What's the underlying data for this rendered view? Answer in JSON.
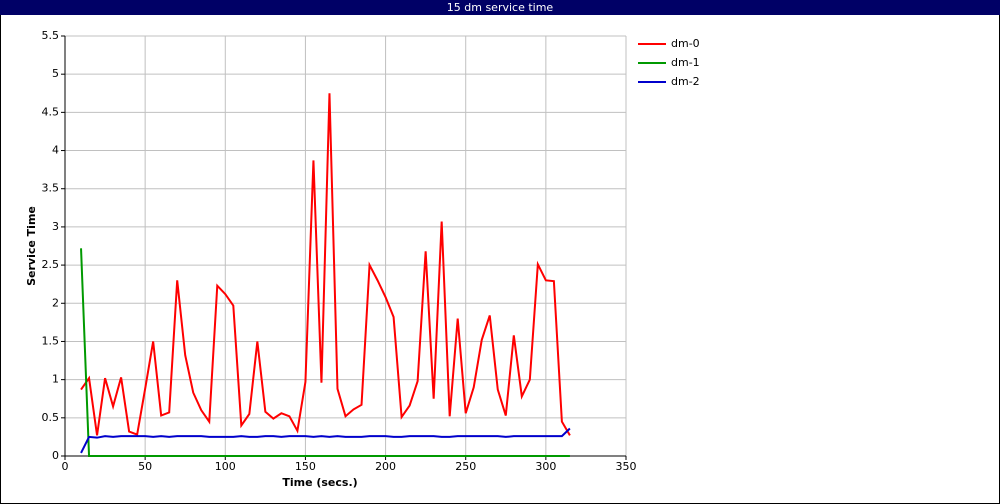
{
  "chart_data": {
    "type": "line",
    "title": "15 dm service time",
    "xlabel": "Time (secs.)",
    "ylabel": "Service Time",
    "x": [
      10,
      15,
      20,
      25,
      30,
      35,
      40,
      45,
      50,
      55,
      60,
      65,
      70,
      75,
      80,
      85,
      90,
      95,
      100,
      105,
      110,
      115,
      120,
      125,
      130,
      135,
      140,
      145,
      150,
      155,
      160,
      165,
      170,
      175,
      180,
      185,
      190,
      195,
      200,
      205,
      210,
      215,
      220,
      225,
      230,
      235,
      240,
      245,
      250,
      255,
      260,
      265,
      270,
      275,
      280,
      285,
      290,
      295,
      300,
      305,
      310,
      315
    ],
    "series": [
      {
        "name": "dm-0",
        "color": "#ff0000",
        "values": [
          0.87,
          1.02,
          0.27,
          1.02,
          0.65,
          1.03,
          0.32,
          0.28,
          0.88,
          1.5,
          0.53,
          0.57,
          2.3,
          1.32,
          0.83,
          0.6,
          0.45,
          2.23,
          2.12,
          1.97,
          0.4,
          0.55,
          1.5,
          0.58,
          0.49,
          0.56,
          0.52,
          0.33,
          0.97,
          3.87,
          0.96,
          4.75,
          0.88,
          0.52,
          0.61,
          0.67,
          2.5,
          2.3,
          2.08,
          1.82,
          0.51,
          0.66,
          0.98,
          2.68,
          0.75,
          3.07,
          0.52,
          1.8,
          0.56,
          0.9,
          1.52,
          1.84,
          0.87,
          0.53,
          1.58,
          0.78,
          1.0,
          2.51,
          2.3,
          2.29,
          0.45,
          0.27
        ]
      },
      {
        "name": "dm-1",
        "color": "#009900",
        "values": [
          2.72,
          0,
          0,
          0,
          0,
          0,
          0,
          0,
          0,
          0,
          0,
          0,
          0,
          0,
          0,
          0,
          0,
          0,
          0,
          0,
          0,
          0,
          0,
          0,
          0,
          0,
          0,
          0,
          0,
          0,
          0,
          0,
          0,
          0,
          0,
          0,
          0,
          0,
          0,
          0,
          0,
          0,
          0,
          0,
          0,
          0,
          0,
          0,
          0,
          0,
          0,
          0,
          0,
          0,
          0,
          0,
          0,
          0,
          0,
          0,
          0,
          0
        ]
      },
      {
        "name": "dm-2",
        "color": "#0000cc",
        "values": [
          0.04,
          0.25,
          0.24,
          0.26,
          0.25,
          0.26,
          0.26,
          0.26,
          0.26,
          0.25,
          0.26,
          0.25,
          0.26,
          0.26,
          0.26,
          0.26,
          0.25,
          0.25,
          0.25,
          0.25,
          0.26,
          0.25,
          0.25,
          0.26,
          0.26,
          0.25,
          0.26,
          0.26,
          0.26,
          0.25,
          0.26,
          0.25,
          0.26,
          0.25,
          0.25,
          0.25,
          0.26,
          0.26,
          0.26,
          0.25,
          0.25,
          0.26,
          0.26,
          0.26,
          0.26,
          0.25,
          0.25,
          0.26,
          0.26,
          0.26,
          0.26,
          0.26,
          0.26,
          0.25,
          0.26,
          0.26,
          0.26,
          0.26,
          0.26,
          0.26,
          0.26,
          0.36
        ]
      }
    ],
    "xlim": [
      0,
      350
    ],
    "xticks": [
      0,
      50,
      100,
      150,
      200,
      250,
      300,
      350
    ],
    "ylim": [
      0,
      5.5
    ],
    "yticks": [
      0,
      0.5,
      1,
      1.5,
      2,
      2.5,
      3,
      3.5,
      4,
      4.5,
      5,
      5.5
    ],
    "grid": true,
    "legend": "right"
  }
}
